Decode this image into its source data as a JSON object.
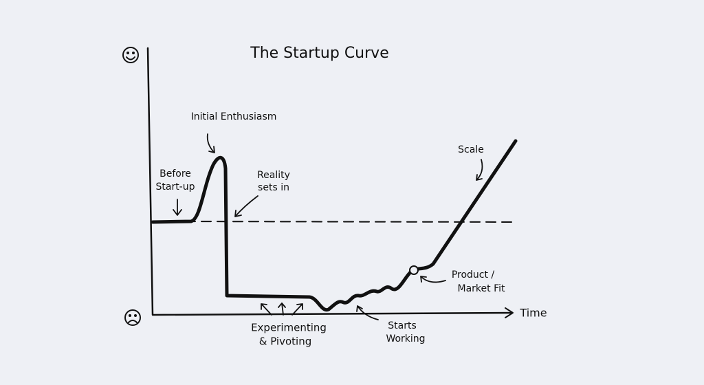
{
  "title": "The Startup Curve",
  "x_axis_label": "Time",
  "annotations": [
    {
      "lines": [
        "Initial Enthusiasm"
      ]
    },
    {
      "lines": [
        "Before",
        "Start-up"
      ]
    },
    {
      "lines": [
        "Reality",
        "sets in"
      ]
    },
    {
      "lines": [
        "Experimenting",
        "& Pivoting"
      ]
    },
    {
      "lines": [
        "Starts",
        "Working"
      ]
    },
    {
      "lines": [
        "Product /",
        "Market Fit"
      ]
    },
    {
      "lines": [
        "Scale"
      ]
    }
  ]
}
